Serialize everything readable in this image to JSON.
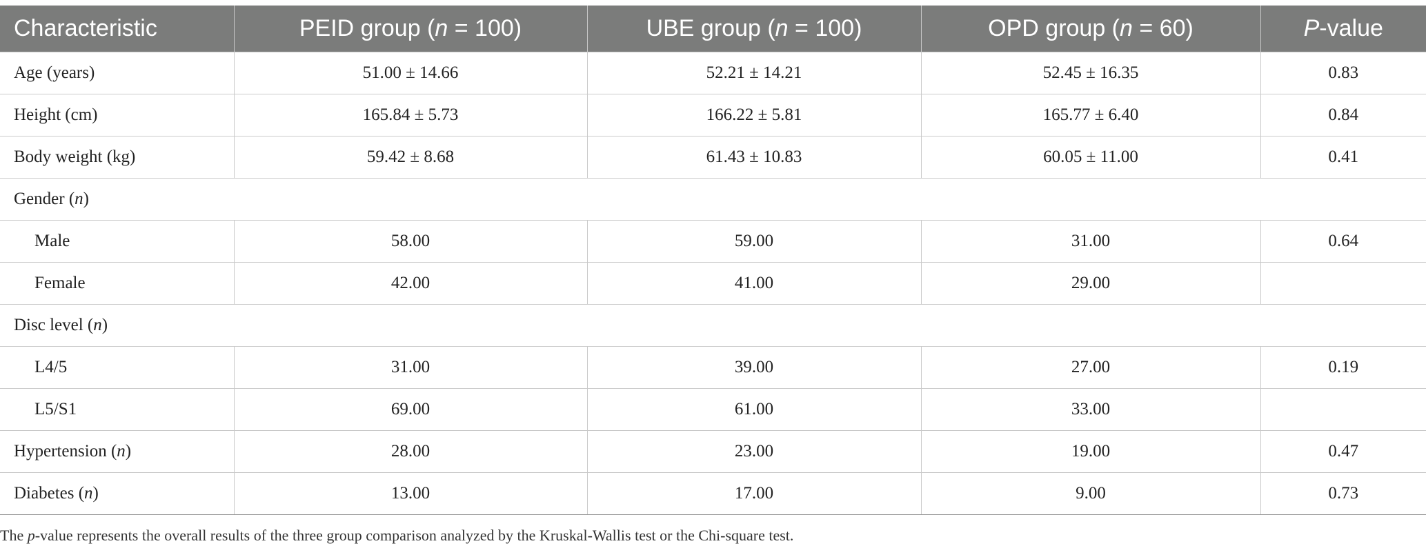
{
  "header": {
    "characteristic": "Characteristic",
    "peid_prefix": "PEID group (",
    "ube_prefix": "UBE group (",
    "opd_prefix": "OPD group (",
    "n_symbol": "n",
    "peid_suffix": " = 100)",
    "ube_suffix": " = 100)",
    "opd_suffix": " = 60)",
    "p_symbol": "P",
    "p_suffix": "-value"
  },
  "rows": {
    "age": {
      "label": "Age (years)",
      "peid": "51.00 ± 14.66",
      "ube": "52.21 ± 14.21",
      "opd": "52.45 ± 16.35",
      "p": "0.83"
    },
    "height": {
      "label": "Height (cm)",
      "peid": "165.84 ± 5.73",
      "ube": "166.22 ± 5.81",
      "opd": "165.77 ± 6.40",
      "p": "0.84"
    },
    "weight": {
      "label": "Body weight (kg)",
      "peid": "59.42 ± 8.68",
      "ube": "61.43 ± 10.83",
      "opd": "60.05 ± 11.00",
      "p": "0.41"
    },
    "gender": {
      "label": "Gender (",
      "n": "n",
      "close": ")"
    },
    "male": {
      "label": "Male",
      "peid": "58.00",
      "ube": "59.00",
      "opd": "31.00",
      "p": "0.64"
    },
    "female": {
      "label": "Female",
      "peid": "42.00",
      "ube": "41.00",
      "opd": "29.00",
      "p": ""
    },
    "disc": {
      "label": "Disc level (",
      "n": "n",
      "close": ")"
    },
    "l45": {
      "label": "L4/5",
      "peid": "31.00",
      "ube": "39.00",
      "opd": "27.00",
      "p": "0.19"
    },
    "l5s1": {
      "label": "L5/S1",
      "peid": "69.00",
      "ube": "61.00",
      "opd": "33.00",
      "p": ""
    },
    "hypertension": {
      "label": "Hypertension (",
      "n": "n",
      "close": ")",
      "peid": "28.00",
      "ube": "23.00",
      "opd": "19.00",
      "p": "0.47"
    },
    "diabetes": {
      "label": "Diabetes (",
      "n": "n",
      "close": ")",
      "peid": "13.00",
      "ube": "17.00",
      "opd": "9.00",
      "p": "0.73"
    }
  },
  "footnote": {
    "prefix": "The ",
    "p_symbol": "p",
    "text": "-value represents the overall results of the three group comparison analyzed by the Kruskal-Wallis test or the Chi-square test."
  }
}
